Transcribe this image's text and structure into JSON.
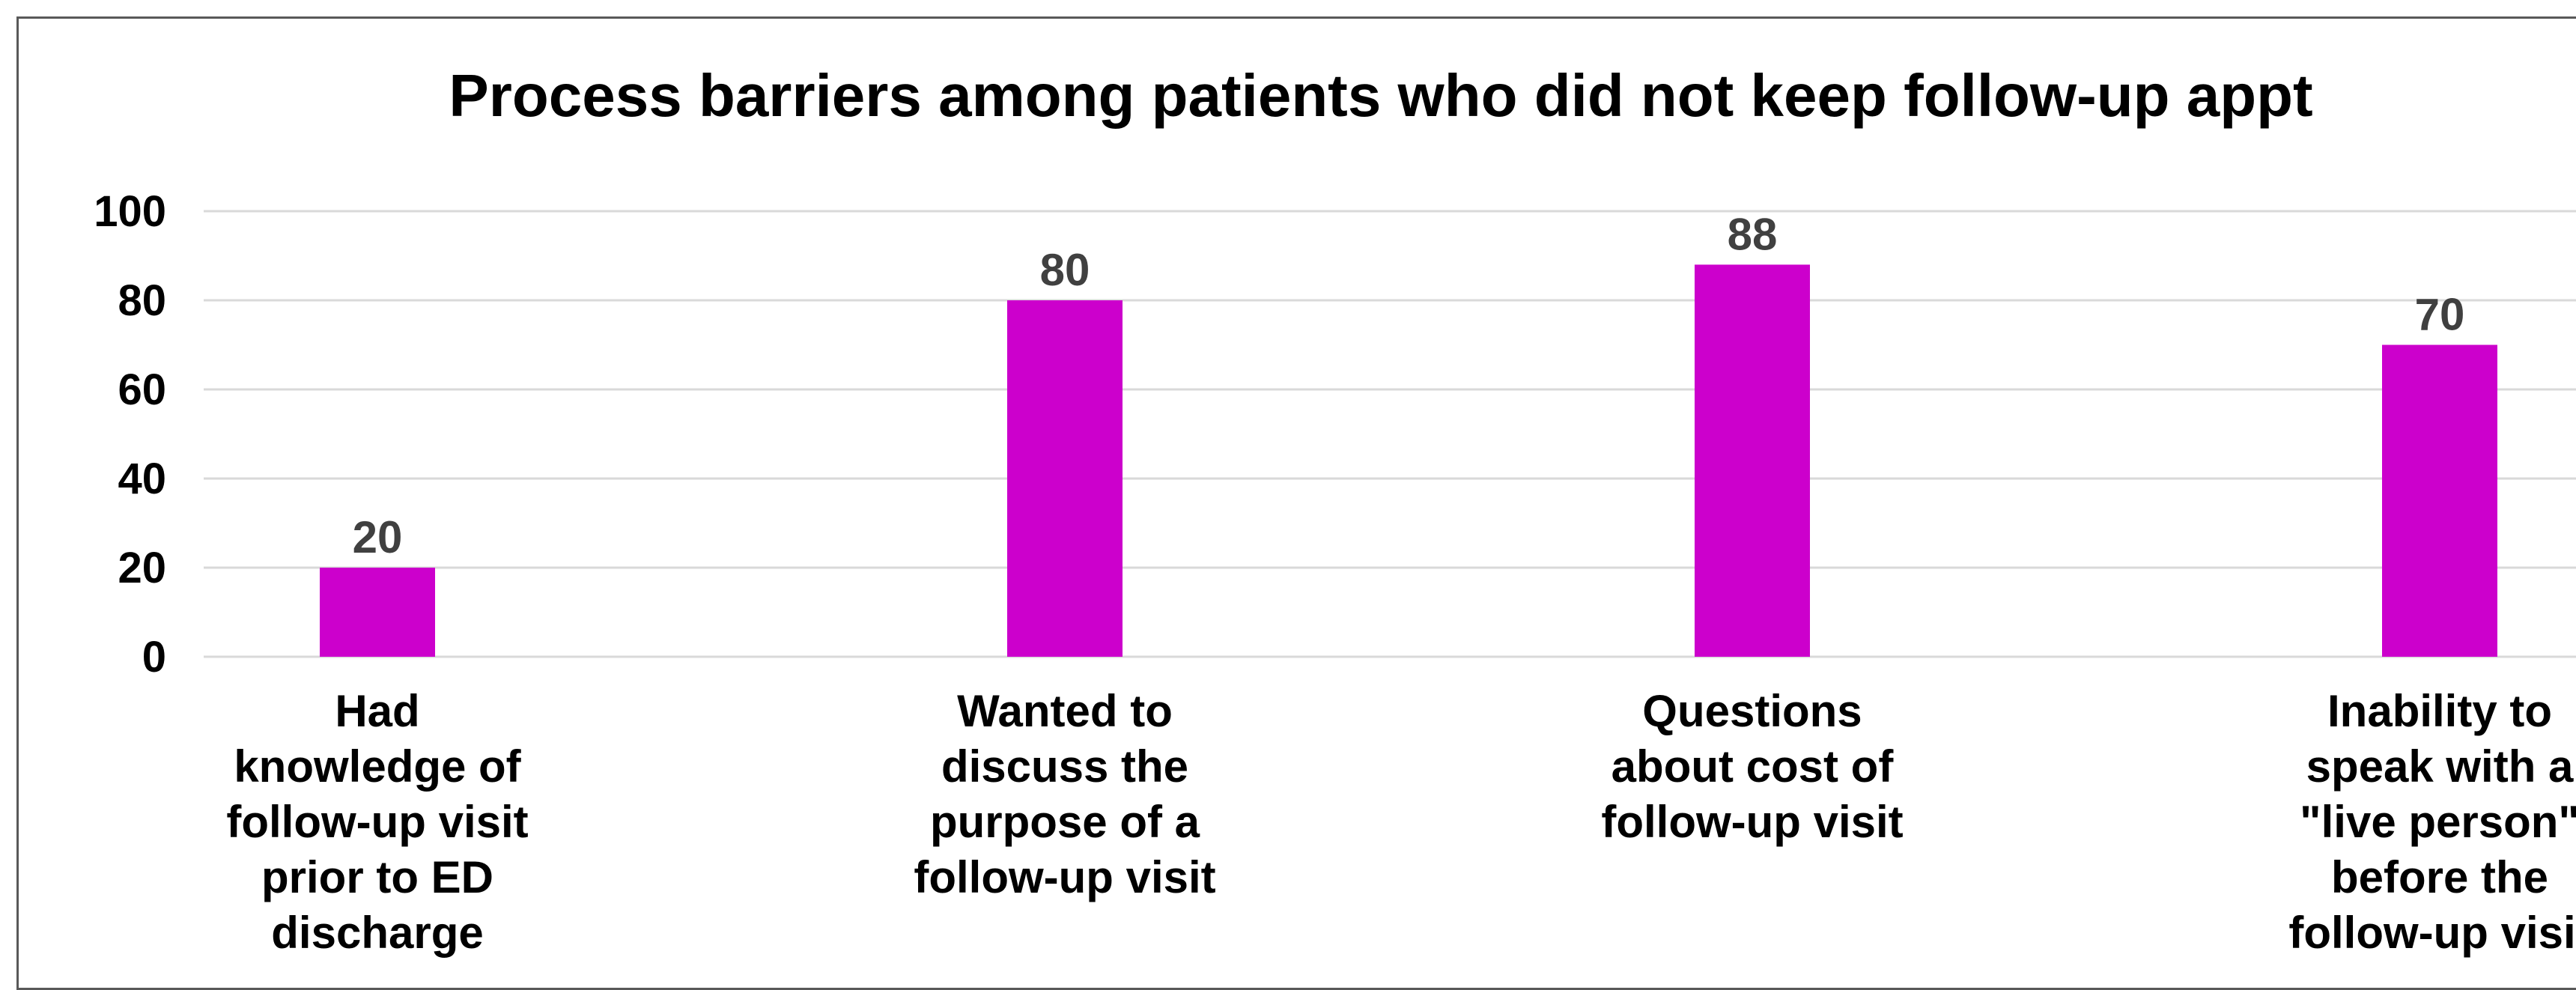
{
  "chart_data": {
    "type": "bar",
    "title": "Process barriers among patients who did not keep follow-up appt",
    "categories": [
      "Had\nknowledge of\nfollow-up visit\nprior to ED\ndischarge",
      "Wanted to\ndiscuss the\npurpose of a\nfollow-up visit",
      "Questions\nabout cost of\nfollow-up visit",
      "Inability to\nspeak with a\n\"live person\"\nbefore the\nfollow-up visit"
    ],
    "values": [
      20,
      80,
      88,
      70
    ],
    "data_labels": [
      "20",
      "80",
      "88",
      "70"
    ],
    "ylim": [
      0,
      100
    ],
    "yticks": [
      0,
      20,
      40,
      60,
      80,
      100
    ],
    "ytick_labels": [
      "0",
      "20",
      "40",
      "60",
      "80",
      "100"
    ],
    "xlabel": "",
    "ylabel": "",
    "grid": true,
    "bar_color": "#CC00CC",
    "gridline_color": "#D9D9D9",
    "axis_color": "#D9D9D9",
    "data_label_color": "#404040"
  }
}
